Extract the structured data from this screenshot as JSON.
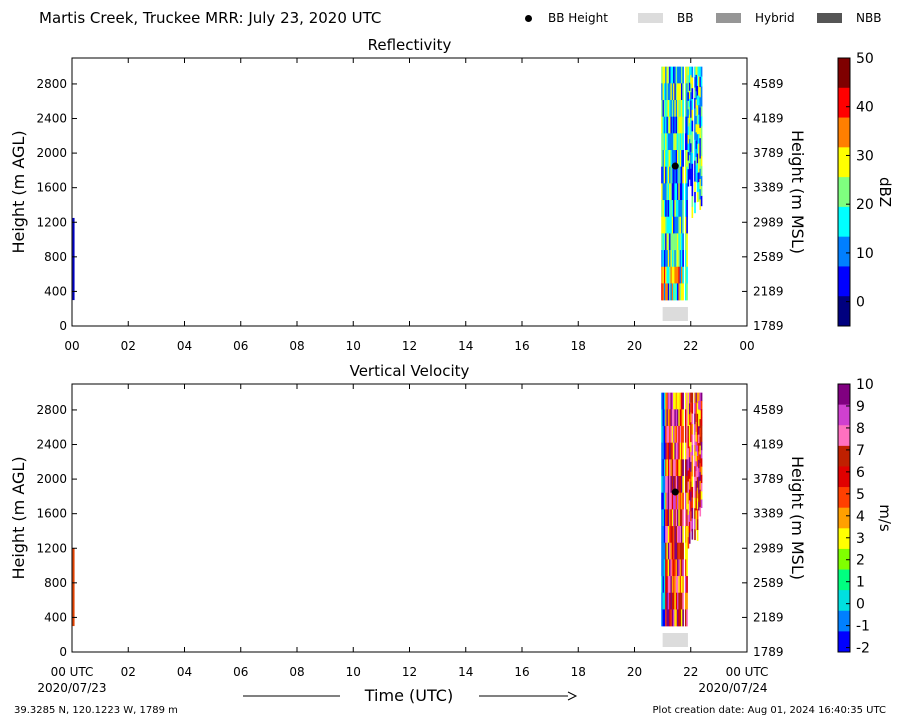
{
  "header": {
    "title": "Martis Creek, Truckee MRR:  July 23, 2020 UTC",
    "legend": [
      {
        "label": "BB Height",
        "kind": "dot",
        "color": "#000000"
      },
      {
        "label": "BB",
        "kind": "swatch",
        "color": "#dcdcdc"
      },
      {
        "label": "Hybrid",
        "kind": "swatch",
        "color": "#969696"
      },
      {
        "label": "NBB",
        "kind": "swatch",
        "color": "#555555"
      }
    ]
  },
  "footer": {
    "location": "39.3285 N, 120.1223 W, 1789 m",
    "created": "Plot creation date: Aug 01, 2024 16:40:35 UTC"
  },
  "chart_data": [
    {
      "type": "heatmap",
      "title": "Reflectivity",
      "ylabel": "Height (m AGL)",
      "ylabel_right": "Height (m MSL)",
      "x_ticks": [
        "00",
        "02",
        "04",
        "06",
        "08",
        "10",
        "12",
        "14",
        "16",
        "18",
        "20",
        "22",
        "00"
      ],
      "xlim": [
        0,
        24
      ],
      "ylim": [
        0,
        3100
      ],
      "y_ticks": [
        0,
        400,
        800,
        1200,
        1600,
        2000,
        2400,
        2800
      ],
      "y_ticks_right": [
        "1789",
        "2189",
        "2589",
        "2989",
        "3389",
        "3789",
        "4189",
        "4589"
      ],
      "colorbar": {
        "label": "dBZ",
        "min": -5,
        "max": 50,
        "ticks": [
          0,
          10,
          20,
          30,
          40,
          50
        ],
        "colors": [
          "#00007f",
          "#0000ff",
          "#007fff",
          "#00ffff",
          "#7fff7f",
          "#ffff00",
          "#ff7f00",
          "#ff0000",
          "#7f0000"
        ]
      },
      "bb_height_points": [
        {
          "x": 21.45,
          "y": 1850
        }
      ],
      "bb_segments": [
        {
          "x0": 21.0,
          "x1": 21.9
        }
      ],
      "echo": {
        "x_start": 20.95,
        "x_end": 22.45,
        "y_bottom": 300,
        "y_top": 3000
      },
      "early_trace": {
        "x": 0.02,
        "y_bottom": 300,
        "y_top": 1250
      }
    },
    {
      "type": "heatmap",
      "title": "Vertical Velocity",
      "ylabel": "Height (m AGL)",
      "ylabel_right": "Height (m MSL)",
      "x_ticks": [
        "00 UTC",
        "02",
        "04",
        "06",
        "08",
        "10",
        "12",
        "14",
        "16",
        "18",
        "20",
        "22",
        "00 UTC"
      ],
      "x_date_left": "2020/07/23",
      "x_date_right": "2020/07/24",
      "xlabel": "Time (UTC)",
      "xlim": [
        0,
        24
      ],
      "ylim": [
        0,
        3100
      ],
      "y_ticks": [
        0,
        400,
        800,
        1200,
        1600,
        2000,
        2400,
        2800
      ],
      "y_ticks_right": [
        "1789",
        "2189",
        "2589",
        "2989",
        "3389",
        "3789",
        "4189",
        "4589"
      ],
      "colorbar": {
        "label": "m/s",
        "min": -2.2,
        "max": 10,
        "ticks": [
          -2,
          -1,
          0,
          1,
          2,
          3,
          4,
          5,
          6,
          7,
          8,
          9,
          10
        ],
        "colors": [
          "#0000ff",
          "#0080ff",
          "#00e0e0",
          "#00ff80",
          "#80ff00",
          "#ffff00",
          "#ffa000",
          "#ff4000",
          "#e00000",
          "#c02000",
          "#ff70c0",
          "#d040d0",
          "#800080"
        ]
      },
      "bb_height_points": [
        {
          "x": 21.45,
          "y": 1850
        }
      ],
      "bb_segments": [
        {
          "x0": 21.0,
          "x1": 21.9
        }
      ],
      "echo": {
        "x_start": 20.95,
        "x_end": 22.45,
        "y_bottom": 300,
        "y_top": 3000
      },
      "early_trace": {
        "x": 0.02,
        "y_bottom": 300,
        "y_top": 1200
      }
    }
  ]
}
